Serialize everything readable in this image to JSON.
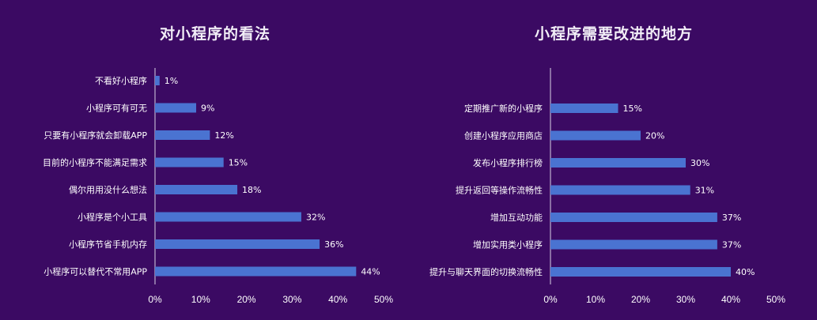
{
  "colors": {
    "background": "#3b0a63",
    "bar": "#4a73d1",
    "axis": "#d9d2e6"
  },
  "chart_data": [
    {
      "type": "bar",
      "orientation": "horizontal",
      "title": "对小程序的看法",
      "categories": [
        "不看好小程序",
        "小程序可有可无",
        "只要有小程序就会卸载APP",
        "目前的小程序不能满足需求",
        "偶尔用用没什么想法",
        "小程序是个小工具",
        "小程序节省手机内存",
        "小程序可以替代不常用APP"
      ],
      "values": [
        1,
        9,
        12,
        15,
        18,
        32,
        36,
        44
      ],
      "value_labels": [
        "1%",
        "9%",
        "12%",
        "15%",
        "18%",
        "32%",
        "36%",
        "44%"
      ],
      "xlim": [
        0,
        50
      ],
      "ticks": [
        "0%",
        "10%",
        "20%",
        "30%",
        "40%",
        "50%"
      ],
      "grid": false
    },
    {
      "type": "bar",
      "orientation": "horizontal",
      "title": "小程序需要改进的地方",
      "categories": [
        "定期推广新的小程序",
        "创建小程序应用商店",
        "发布小程序排行榜",
        "提升返回等操作流畅性",
        "增加互动功能",
        "增加实用类小程序",
        "提升与聊天界面的切换流畅性"
      ],
      "values": [
        15,
        20,
        30,
        31,
        37,
        37,
        40
      ],
      "value_labels": [
        "15%",
        "20%",
        "30%",
        "31%",
        "37%",
        "37%",
        "40%"
      ],
      "xlim": [
        0,
        50
      ],
      "ticks": [
        "0%",
        "10%",
        "20%",
        "30%",
        "40%",
        "50%"
      ],
      "grid": false
    }
  ]
}
